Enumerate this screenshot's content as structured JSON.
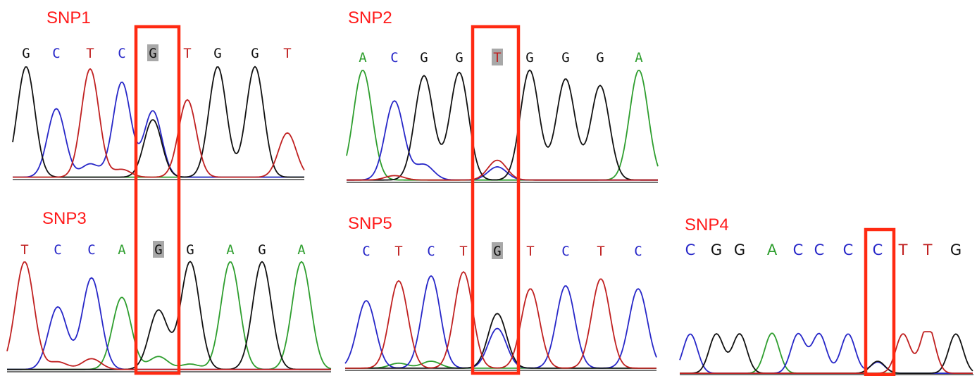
{
  "colors": {
    "A": "#2e9e2e",
    "C": "#2727c8",
    "G": "#111111",
    "T": "#c02020",
    "label": "#ff1a1a",
    "highlight_box": "#ff2a12",
    "highlight_bg": "#a8a8a8"
  },
  "panels": [
    {
      "id": "snp1",
      "label": "SNP1",
      "bases": [
        "G",
        "C",
        "T",
        "C",
        "G",
        "T",
        "G",
        "G",
        "T"
      ],
      "snp_index": 4,
      "highlighted_base_index": 4
    },
    {
      "id": "snp2",
      "label": "SNP2",
      "bases": [
        "A",
        "C",
        "G",
        "G",
        "T",
        "G",
        "G",
        "G",
        "A"
      ],
      "snp_index": 4,
      "highlighted_base_index": 4
    },
    {
      "id": "snp3",
      "label": "SNP3",
      "bases": [
        "T",
        "C",
        "C",
        "A",
        "G",
        "G",
        "A",
        "G",
        "A"
      ],
      "snp_index": 4,
      "highlighted_base_index": 4
    },
    {
      "id": "snp5",
      "label": "SNP5",
      "bases": [
        "C",
        "T",
        "C",
        "T",
        "G",
        "T",
        "C",
        "T",
        "C"
      ],
      "snp_index": 4,
      "highlighted_base_index": 4
    },
    {
      "id": "snp4",
      "label": "SNP4",
      "bases": [
        "C",
        "G",
        "G",
        "A",
        "C",
        "C",
        "C",
        "C",
        "T",
        "T",
        "G"
      ],
      "snp_index": 7,
      "highlighted_base_index": null
    }
  ]
}
